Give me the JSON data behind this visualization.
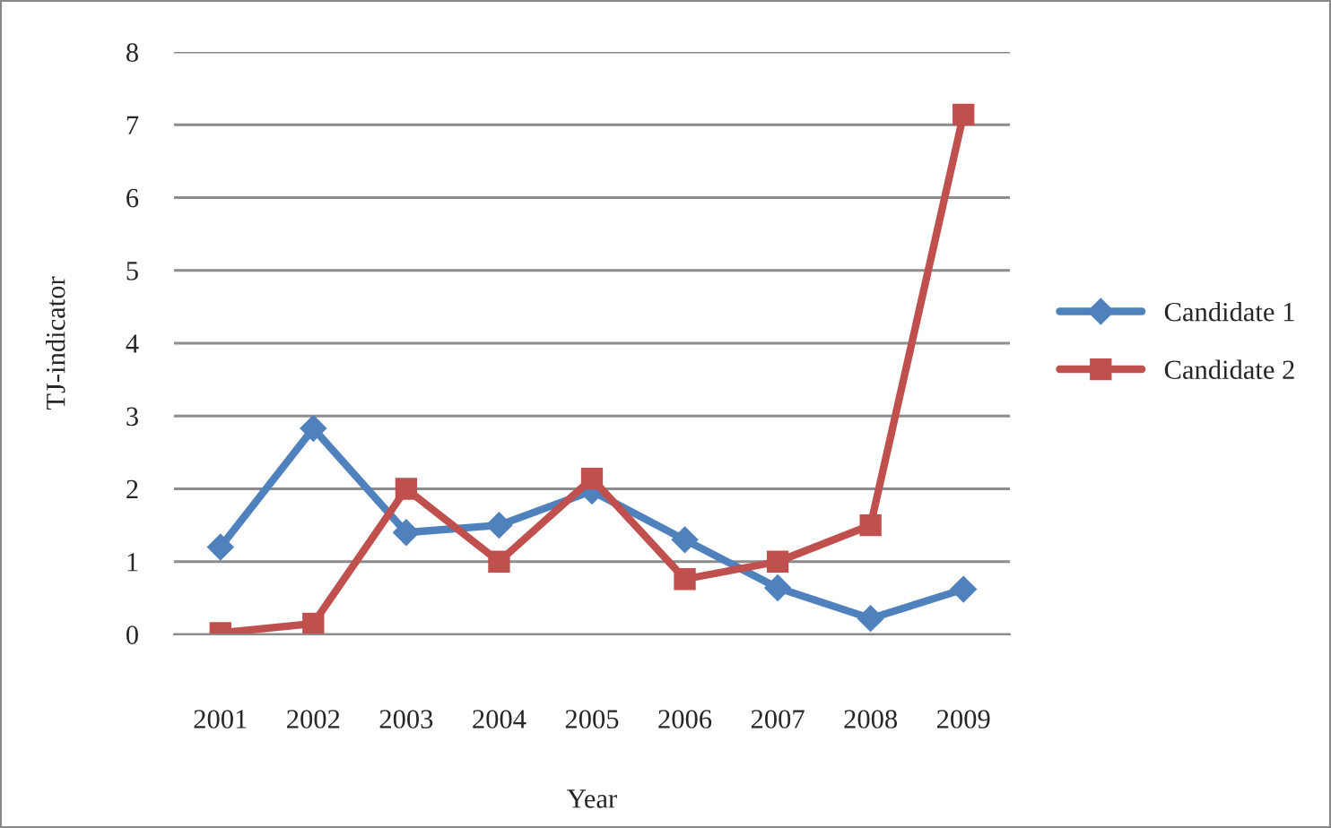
{
  "chart_data": {
    "type": "line",
    "xlabel": "Year",
    "ylabel": "TJ-indicator",
    "categories": [
      "2001",
      "2002",
      "2003",
      "2004",
      "2005",
      "2006",
      "2007",
      "2008",
      "2009"
    ],
    "series": [
      {
        "name": "Candidate 1",
        "color": "#4f81bd",
        "marker": "diamond",
        "values": [
          1.2,
          2.83,
          1.4,
          1.5,
          1.97,
          1.3,
          0.64,
          0.22,
          0.62
        ]
      },
      {
        "name": "Candidate 2",
        "color": "#c0504d",
        "marker": "square",
        "values": [
          0.02,
          0.15,
          2.0,
          1.0,
          2.14,
          0.76,
          1.0,
          1.5,
          7.14
        ]
      }
    ],
    "ylim": [
      0,
      8
    ],
    "yticks": [
      0,
      1,
      2,
      3,
      4,
      5,
      6,
      7,
      8
    ],
    "grid": "y",
    "legend": "right"
  }
}
